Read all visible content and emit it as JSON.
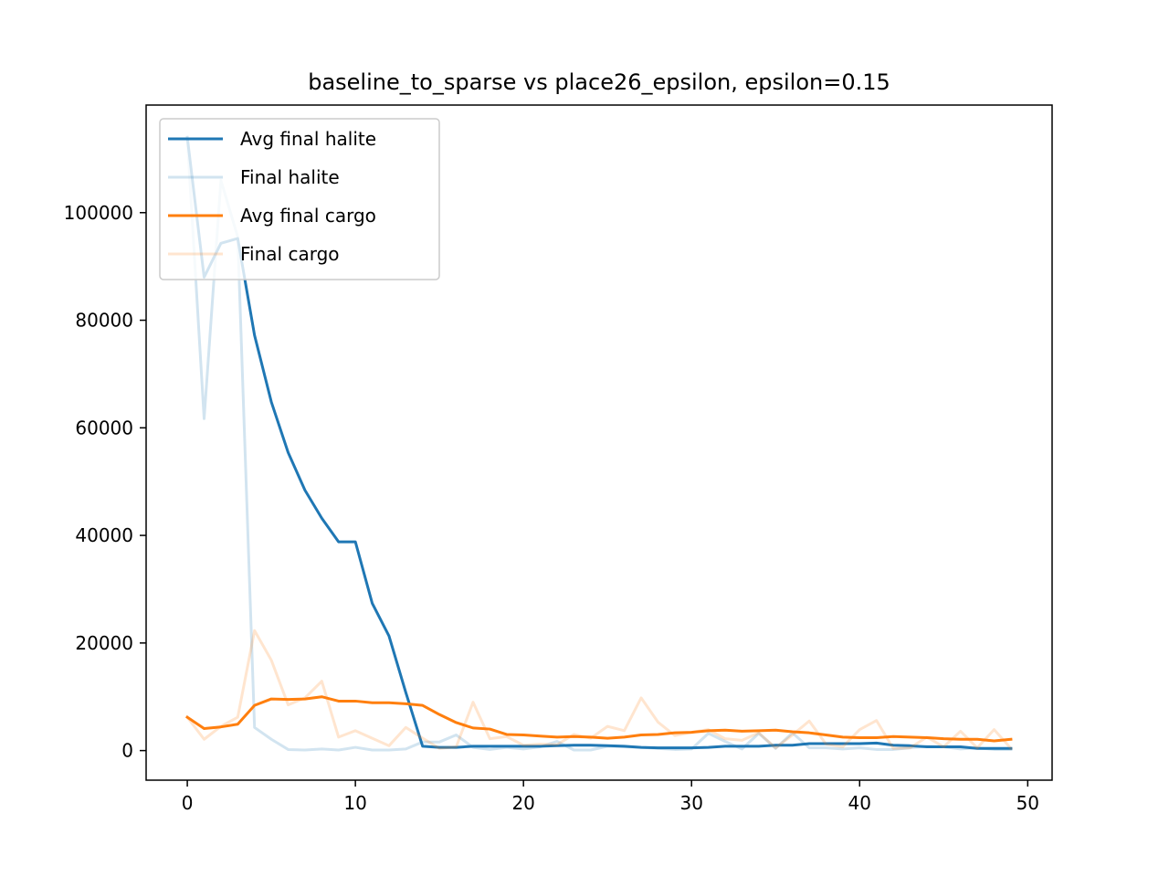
{
  "chart_data": {
    "type": "line",
    "title": "baseline_to_sparse vs place26_epsilon, epsilon=0.15",
    "xlabel": "",
    "ylabel": "",
    "xlim": [
      -2.45,
      51.45
    ],
    "ylim": [
      -5500,
      120000
    ],
    "xticks": [
      0,
      10,
      20,
      30,
      40,
      50
    ],
    "yticks": [
      0,
      20000,
      40000,
      60000,
      80000,
      100000
    ],
    "grid": false,
    "legend_position": "top-left",
    "x": [
      0,
      1,
      2,
      3,
      4,
      5,
      6,
      7,
      8,
      9,
      10,
      11,
      12,
      13,
      14,
      15,
      16,
      17,
      18,
      19,
      20,
      21,
      22,
      23,
      24,
      25,
      26,
      27,
      28,
      29,
      30,
      31,
      32,
      33,
      34,
      35,
      36,
      37,
      38,
      39,
      40,
      41,
      42,
      43,
      44,
      45,
      46,
      47,
      48,
      49
    ],
    "series": [
      {
        "name": "Avg final halite",
        "color": "#1f77b4",
        "opacity": 1.0,
        "values": [
          114000,
          88000,
          94300,
          95200,
          77200,
          64800,
          55400,
          48400,
          43200,
          38800,
          38800,
          27400,
          21300,
          10800,
          800,
          600,
          600,
          800,
          800,
          800,
          800,
          800,
          900,
          1000,
          1000,
          900,
          800,
          600,
          500,
          500,
          500,
          600,
          800,
          800,
          800,
          1000,
          1000,
          1300,
          1300,
          1300,
          1300,
          1400,
          1000,
          900,
          700,
          700,
          700,
          400,
          400,
          400
        ]
      },
      {
        "name": "Final halite",
        "color": "#1f77b4",
        "opacity": 0.2,
        "values": [
          114000,
          61700,
          106000,
          95500,
          4300,
          2100,
          200,
          100,
          300,
          100,
          600,
          100,
          100,
          300,
          1600,
          1600,
          2900,
          600,
          200,
          600,
          300,
          700,
          1700,
          100,
          100,
          800,
          700,
          600,
          400,
          200,
          300,
          3200,
          1700,
          300,
          3200,
          400,
          3300,
          500,
          500,
          300,
          500,
          200,
          200,
          500,
          800,
          700,
          300,
          500,
          200,
          200
        ]
      },
      {
        "name": "Avg final cargo",
        "color": "#ff7f0e",
        "opacity": 1.0,
        "values": [
          6200,
          4100,
          4400,
          4900,
          8400,
          9600,
          9500,
          9600,
          10000,
          9200,
          9200,
          8900,
          8900,
          8700,
          8400,
          6700,
          5200,
          4200,
          4000,
          3000,
          2900,
          2700,
          2500,
          2600,
          2500,
          2300,
          2500,
          2900,
          3000,
          3300,
          3400,
          3700,
          3800,
          3600,
          3700,
          3800,
          3500,
          3300,
          2900,
          2500,
          2400,
          2400,
          2600,
          2500,
          2400,
          2200,
          2100,
          2100,
          1800,
          2100
        ]
      },
      {
        "name": "Final cargo",
        "color": "#ff7f0e",
        "opacity": 0.2,
        "values": [
          6200,
          2100,
          4500,
          6200,
          22300,
          16800,
          8500,
          9800,
          12900,
          2500,
          3700,
          2300,
          900,
          4300,
          2300,
          400,
          700,
          9000,
          2200,
          2600,
          1000,
          1200,
          1100,
          3000,
          2300,
          4500,
          3700,
          9800,
          5300,
          2800,
          3400,
          3900,
          2200,
          1900,
          3300,
          500,
          2900,
          5500,
          1200,
          700,
          3900,
          5600,
          400,
          500,
          2500,
          700,
          3600,
          500,
          3900,
          400
        ]
      }
    ]
  }
}
